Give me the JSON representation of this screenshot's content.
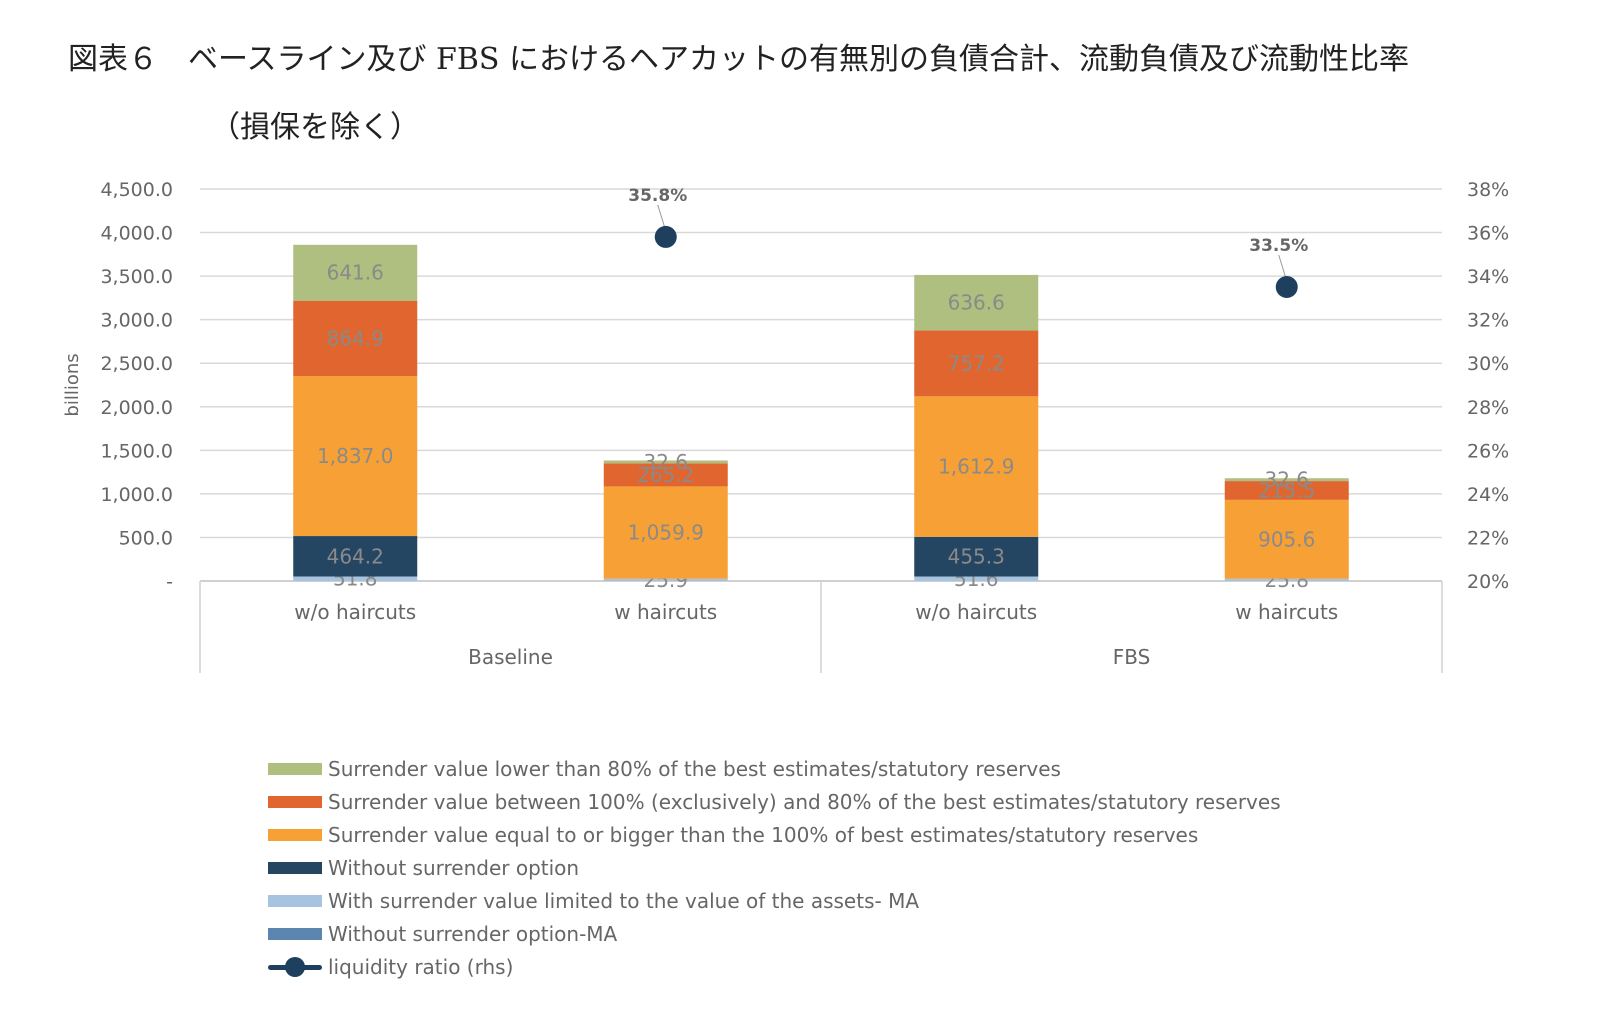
{
  "title": {
    "line1": "図表６　ベースライン及び FBS におけるヘアカットの有無別の負債合計、流動負債及び流動性比率",
    "line2": "（損保を除く）"
  },
  "chart_data": {
    "type": "bar",
    "stacked": true,
    "ylabel": "billions",
    "ylim": [
      0,
      4500
    ],
    "yticks": [
      "-",
      "500.0",
      "1,000.0",
      "1,500.0",
      "2,000.0",
      "2,500.0",
      "3,000.0",
      "3,500.0",
      "4,000.0",
      "4,500.0"
    ],
    "y2lim": [
      20,
      38
    ],
    "y2ticks": [
      "20%",
      "22%",
      "24%",
      "26%",
      "28%",
      "30%",
      "32%",
      "34%",
      "36%",
      "38%"
    ],
    "grid": true,
    "legend_position": "bottom",
    "categories": [
      "w/o haircuts",
      "w haircuts",
      "w/o haircuts",
      "w haircuts"
    ],
    "groups": [
      {
        "label": "Baseline",
        "span": [
          0,
          1
        ]
      },
      {
        "label": "FBS",
        "span": [
          2,
          3
        ]
      }
    ],
    "series": [
      {
        "name": "Without surrender option-MA",
        "color": "#5b86b0",
        "values": [
          0,
          0,
          0,
          0
        ],
        "labels": [
          "",
          "",
          "",
          ""
        ]
      },
      {
        "name": "With surrender value limited to the value of the assets- MA",
        "color": "#a6c4e0",
        "values": [
          51.8,
          25.9,
          51.6,
          25.8
        ],
        "labels": [
          "51.8",
          "25.9",
          "51.6",
          "25.8"
        ]
      },
      {
        "name": "Without surrender option",
        "color": "#254663",
        "values": [
          464.2,
          0,
          455.3,
          0
        ],
        "labels": [
          "464.2",
          "",
          "455.3",
          ""
        ]
      },
      {
        "name": "Surrender value equal to or bigger than the 100% of best estimates/statutory reserves",
        "color": "#f6a035",
        "values": [
          1837.0,
          1059.9,
          1612.9,
          905.6
        ],
        "labels": [
          "1,837.0",
          "1,059.9",
          "1,612.9",
          "905.6"
        ]
      },
      {
        "name": "Surrender value between 100% (exclusively) and 80% of the best estimates/statutory reserves",
        "color": "#e0652e",
        "values": [
          864.9,
          265.2,
          757.2,
          215.5
        ],
        "labels": [
          "864.9",
          "265.2",
          "757.2",
          "215.5"
        ]
      },
      {
        "name": "Surrender value lower than 80% of the best estimates/statutory reserves",
        "color": "#aebf7f",
        "values": [
          641.6,
          32.6,
          636.6,
          32.6
        ],
        "labels": [
          "641.6",
          "32.6",
          "636.6",
          "32.6"
        ]
      }
    ],
    "ratio_series": {
      "name": "liquidity ratio (rhs)",
      "color": "#1f3f5e",
      "points": [
        {
          "category_index": 1,
          "value": 35.8,
          "label": "35.8%"
        },
        {
          "category_index": 3,
          "value": 33.5,
          "label": "33.5%"
        }
      ]
    },
    "legend": [
      {
        "name": "Surrender value lower than 80% of the best estimates/statutory reserves",
        "color": "#aebf7f",
        "kind": "bar"
      },
      {
        "name": "Surrender value between 100% (exclusively) and 80% of the best estimates/statutory reserves",
        "color": "#e0652e",
        "kind": "bar"
      },
      {
        "name": "Surrender value equal to or bigger than the 100% of best estimates/statutory reserves",
        "color": "#f6a035",
        "kind": "bar"
      },
      {
        "name": "Without surrender option",
        "color": "#254663",
        "kind": "bar"
      },
      {
        "name": " With surrender value limited to the value of the assets- MA",
        "color": "#a6c4e0",
        "kind": "bar"
      },
      {
        "name": "Without surrender option-MA",
        "color": "#5b86b0",
        "kind": "bar"
      },
      {
        "name": "liquidity ratio (rhs)",
        "color": "#1f3f5e",
        "kind": "line-marker"
      }
    ]
  }
}
